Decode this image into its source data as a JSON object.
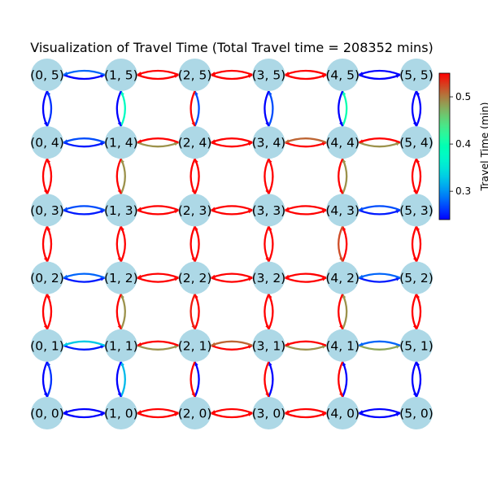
{
  "title": "Visualization of Travel Time (Total Travel time = 208352 mins)",
  "colorbar": {
    "label": "Travel Time (min)",
    "min": 0.24,
    "max": 0.55,
    "ticks": [
      {
        "value": 0.3,
        "label": "0.3"
      },
      {
        "value": 0.4,
        "label": "0.4"
      },
      {
        "value": 0.5,
        "label": "0.5"
      }
    ]
  },
  "node_color": "#add8e6",
  "colormap": "rainbow",
  "grid_size": [
    6,
    6
  ],
  "nodes": [
    {
      "x": 0,
      "y": 0,
      "label": "(0, 0)"
    },
    {
      "x": 1,
      "y": 0,
      "label": "(1, 0)"
    },
    {
      "x": 2,
      "y": 0,
      "label": "(2, 0)"
    },
    {
      "x": 3,
      "y": 0,
      "label": "(3, 0)"
    },
    {
      "x": 4,
      "y": 0,
      "label": "(4, 0)"
    },
    {
      "x": 5,
      "y": 0,
      "label": "(5, 0)"
    },
    {
      "x": 0,
      "y": 1,
      "label": "(0, 1)"
    },
    {
      "x": 1,
      "y": 1,
      "label": "(1, 1)"
    },
    {
      "x": 2,
      "y": 1,
      "label": "(2, 1)"
    },
    {
      "x": 3,
      "y": 1,
      "label": "(3, 1)"
    },
    {
      "x": 4,
      "y": 1,
      "label": "(4, 1)"
    },
    {
      "x": 5,
      "y": 1,
      "label": "(5, 1)"
    },
    {
      "x": 0,
      "y": 2,
      "label": "(0, 2)"
    },
    {
      "x": 1,
      "y": 2,
      "label": "(1, 2)"
    },
    {
      "x": 2,
      "y": 2,
      "label": "(2, 2)"
    },
    {
      "x": 3,
      "y": 2,
      "label": "(3, 2)"
    },
    {
      "x": 4,
      "y": 2,
      "label": "(4, 2)"
    },
    {
      "x": 5,
      "y": 2,
      "label": "(5, 2)"
    },
    {
      "x": 0,
      "y": 3,
      "label": "(0, 3)"
    },
    {
      "x": 1,
      "y": 3,
      "label": "(1, 3)"
    },
    {
      "x": 2,
      "y": 3,
      "label": "(2, 3)"
    },
    {
      "x": 3,
      "y": 3,
      "label": "(3, 3)"
    },
    {
      "x": 4,
      "y": 3,
      "label": "(4, 3)"
    },
    {
      "x": 5,
      "y": 3,
      "label": "(5, 3)"
    },
    {
      "x": 0,
      "y": 4,
      "label": "(0, 4)"
    },
    {
      "x": 1,
      "y": 4,
      "label": "(1, 4)"
    },
    {
      "x": 2,
      "y": 4,
      "label": "(2, 4)"
    },
    {
      "x": 3,
      "y": 4,
      "label": "(3, 4)"
    },
    {
      "x": 4,
      "y": 4,
      "label": "(4, 4)"
    },
    {
      "x": 5,
      "y": 4,
      "label": "(5, 4)"
    },
    {
      "x": 0,
      "y": 5,
      "label": "(0, 5)"
    },
    {
      "x": 1,
      "y": 5,
      "label": "(1, 5)"
    },
    {
      "x": 2,
      "y": 5,
      "label": "(2, 5)"
    },
    {
      "x": 3,
      "y": 5,
      "label": "(3, 5)"
    },
    {
      "x": 4,
      "y": 5,
      "label": "(4, 5)"
    },
    {
      "x": 5,
      "y": 5,
      "label": "(5, 5)"
    }
  ],
  "edges": [
    {
      "a": [
        0,
        0
      ],
      "b": [
        1,
        0
      ],
      "fwd": 0.24,
      "rev": 0.24
    },
    {
      "a": [
        1,
        0
      ],
      "b": [
        2,
        0
      ],
      "fwd": 0.55,
      "rev": 0.55
    },
    {
      "a": [
        2,
        0
      ],
      "b": [
        3,
        0
      ],
      "fwd": 0.55,
      "rev": 0.55
    },
    {
      "a": [
        3,
        0
      ],
      "b": [
        4,
        0
      ],
      "fwd": 0.55,
      "rev": 0.55
    },
    {
      "a": [
        4,
        0
      ],
      "b": [
        5,
        0
      ],
      "fwd": 0.24,
      "rev": 0.24
    },
    {
      "a": [
        0,
        1
      ],
      "b": [
        1,
        1
      ],
      "fwd": 0.25,
      "rev": 0.33
    },
    {
      "a": [
        1,
        1
      ],
      "b": [
        2,
        1
      ],
      "fwd": 0.49,
      "rev": 0.55
    },
    {
      "a": [
        2,
        1
      ],
      "b": [
        3,
        1
      ],
      "fwd": 0.55,
      "rev": 0.51
    },
    {
      "a": [
        3,
        1
      ],
      "b": [
        4,
        1
      ],
      "fwd": 0.49,
      "rev": 0.55
    },
    {
      "a": [
        4,
        1
      ],
      "b": [
        5,
        1
      ],
      "fwd": 0.48,
      "rev": 0.28
    },
    {
      "a": [
        0,
        2
      ],
      "b": [
        1,
        2
      ],
      "fwd": 0.25,
      "rev": 0.28
    },
    {
      "a": [
        1,
        2
      ],
      "b": [
        2,
        2
      ],
      "fwd": 0.55,
      "rev": 0.55
    },
    {
      "a": [
        2,
        2
      ],
      "b": [
        3,
        2
      ],
      "fwd": 0.55,
      "rev": 0.55
    },
    {
      "a": [
        3,
        2
      ],
      "b": [
        4,
        2
      ],
      "fwd": 0.55,
      "rev": 0.55
    },
    {
      "a": [
        4,
        2
      ],
      "b": [
        5,
        2
      ],
      "fwd": 0.25,
      "rev": 0.28
    },
    {
      "a": [
        0,
        3
      ],
      "b": [
        1,
        3
      ],
      "fwd": 0.25,
      "rev": 0.27
    },
    {
      "a": [
        1,
        3
      ],
      "b": [
        2,
        3
      ],
      "fwd": 0.55,
      "rev": 0.55
    },
    {
      "a": [
        2,
        3
      ],
      "b": [
        3,
        3
      ],
      "fwd": 0.55,
      "rev": 0.55
    },
    {
      "a": [
        3,
        3
      ],
      "b": [
        4,
        3
      ],
      "fwd": 0.55,
      "rev": 0.55
    },
    {
      "a": [
        4,
        3
      ],
      "b": [
        5,
        3
      ],
      "fwd": 0.25,
      "rev": 0.27
    },
    {
      "a": [
        0,
        4
      ],
      "b": [
        1,
        4
      ],
      "fwd": 0.25,
      "rev": 0.27
    },
    {
      "a": [
        1,
        4
      ],
      "b": [
        2,
        4
      ],
      "fwd": 0.49,
      "rev": 0.55
    },
    {
      "a": [
        2,
        4
      ],
      "b": [
        3,
        4
      ],
      "fwd": 0.55,
      "rev": 0.55
    },
    {
      "a": [
        3,
        4
      ],
      "b": [
        4,
        4
      ],
      "fwd": 0.55,
      "rev": 0.51
    },
    {
      "a": [
        4,
        4
      ],
      "b": [
        5,
        4
      ],
      "fwd": 0.49,
      "rev": 0.55
    },
    {
      "a": [
        0,
        5
      ],
      "b": [
        1,
        5
      ],
      "fwd": 0.24,
      "rev": 0.28
    },
    {
      "a": [
        1,
        5
      ],
      "b": [
        2,
        5
      ],
      "fwd": 0.55,
      "rev": 0.55
    },
    {
      "a": [
        2,
        5
      ],
      "b": [
        3,
        5
      ],
      "fwd": 0.55,
      "rev": 0.55
    },
    {
      "a": [
        3,
        5
      ],
      "b": [
        4,
        5
      ],
      "fwd": 0.55,
      "rev": 0.55
    },
    {
      "a": [
        4,
        5
      ],
      "b": [
        5,
        5
      ],
      "fwd": 0.24,
      "rev": 0.24
    },
    {
      "a": [
        0,
        0
      ],
      "b": [
        0,
        1
      ],
      "fwd": 0.26,
      "rev": 0.24
    },
    {
      "a": [
        0,
        1
      ],
      "b": [
        0,
        2
      ],
      "fwd": 0.55,
      "rev": 0.55
    },
    {
      "a": [
        0,
        2
      ],
      "b": [
        0,
        3
      ],
      "fwd": 0.55,
      "rev": 0.55
    },
    {
      "a": [
        0,
        3
      ],
      "b": [
        0,
        4
      ],
      "fwd": 0.55,
      "rev": 0.55
    },
    {
      "a": [
        0,
        4
      ],
      "b": [
        0,
        5
      ],
      "fwd": 0.26,
      "rev": 0.24
    },
    {
      "a": [
        1,
        0
      ],
      "b": [
        1,
        1
      ],
      "fwd": 0.32,
      "rev": 0.24
    },
    {
      "a": [
        1,
        1
      ],
      "b": [
        1,
        2
      ],
      "fwd": 0.49,
      "rev": 0.55
    },
    {
      "a": [
        1,
        2
      ],
      "b": [
        1,
        3
      ],
      "fwd": 0.55,
      "rev": 0.55
    },
    {
      "a": [
        1,
        3
      ],
      "b": [
        1,
        4
      ],
      "fwd": 0.49,
      "rev": 0.55
    },
    {
      "a": [
        1,
        4
      ],
      "b": [
        1,
        5
      ],
      "fwd": 0.38,
      "rev": 0.24
    },
    {
      "a": [
        2,
        0
      ],
      "b": [
        2,
        1
      ],
      "fwd": 0.24,
      "rev": 0.55
    },
    {
      "a": [
        2,
        1
      ],
      "b": [
        2,
        2
      ],
      "fwd": 0.55,
      "rev": 0.54
    },
    {
      "a": [
        2,
        2
      ],
      "b": [
        2,
        3
      ],
      "fwd": 0.55,
      "rev": 0.55
    },
    {
      "a": [
        2,
        3
      ],
      "b": [
        2,
        4
      ],
      "fwd": 0.55,
      "rev": 0.55
    },
    {
      "a": [
        2,
        4
      ],
      "b": [
        2,
        5
      ],
      "fwd": 0.27,
      "rev": 0.55
    },
    {
      "a": [
        3,
        0
      ],
      "b": [
        3,
        1
      ],
      "fwd": 0.24,
      "rev": 0.55
    },
    {
      "a": [
        3,
        1
      ],
      "b": [
        3,
        2
      ],
      "fwd": 0.55,
      "rev": 0.55
    },
    {
      "a": [
        3,
        2
      ],
      "b": [
        3,
        3
      ],
      "fwd": 0.55,
      "rev": 0.55
    },
    {
      "a": [
        3,
        3
      ],
      "b": [
        3,
        4
      ],
      "fwd": 0.55,
      "rev": 0.55
    },
    {
      "a": [
        3,
        4
      ],
      "b": [
        3,
        5
      ],
      "fwd": 0.27,
      "rev": 0.24
    },
    {
      "a": [
        4,
        0
      ],
      "b": [
        4,
        1
      ],
      "fwd": 0.24,
      "rev": 0.55
    },
    {
      "a": [
        4,
        1
      ],
      "b": [
        4,
        2
      ],
      "fwd": 0.49,
      "rev": 0.55
    },
    {
      "a": [
        4,
        2
      ],
      "b": [
        4,
        3
      ],
      "fwd": 0.55,
      "rev": 0.52
    },
    {
      "a": [
        4,
        3
      ],
      "b": [
        4,
        4
      ],
      "fwd": 0.49,
      "rev": 0.55
    },
    {
      "a": [
        4,
        4
      ],
      "b": [
        4,
        5
      ],
      "fwd": 0.4,
      "rev": 0.24
    },
    {
      "a": [
        5,
        0
      ],
      "b": [
        5,
        1
      ],
      "fwd": 0.24,
      "rev": 0.24
    },
    {
      "a": [
        5,
        1
      ],
      "b": [
        5,
        2
      ],
      "fwd": 0.55,
      "rev": 0.55
    },
    {
      "a": [
        5,
        2
      ],
      "b": [
        5,
        3
      ],
      "fwd": 0.55,
      "rev": 0.55
    },
    {
      "a": [
        5,
        3
      ],
      "b": [
        5,
        4
      ],
      "fwd": 0.55,
      "rev": 0.55
    },
    {
      "a": [
        5,
        4
      ],
      "b": [
        5,
        5
      ],
      "fwd": 0.24,
      "rev": 0.24
    }
  ]
}
